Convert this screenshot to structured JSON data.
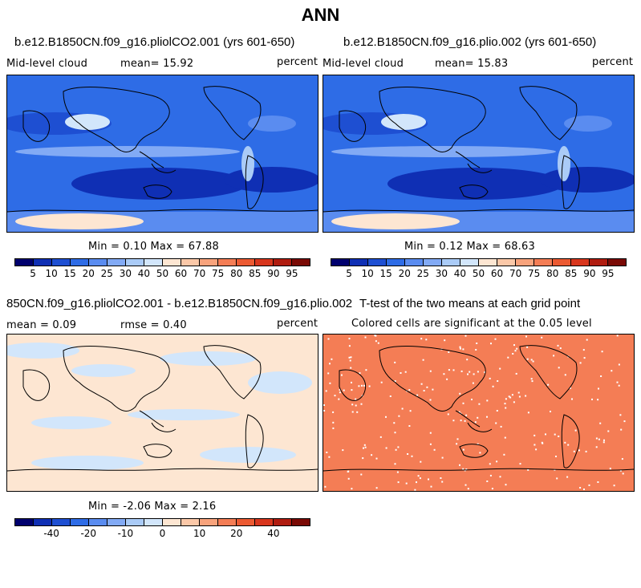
{
  "title": "ANN",
  "panels": [
    {
      "title": "b.e12.B1850CN.f09_g16.pliolCO2.001 (yrs 601-650)",
      "left_label": "Mid-level cloud",
      "mean_label": "mean=  15.92",
      "right_label": "percent",
      "minmax": "Min =   0.10 Max =  67.88"
    },
    {
      "title": "b.e12.B1850CN.f09_g16.plio.002 (yrs 601-650)",
      "left_label": "Mid-level cloud",
      "mean_label": "mean=  15.83",
      "right_label": "percent",
      "minmax": "Min =   0.12 Max =  68.63"
    },
    {
      "title": "850CN.f09_g16.pliolCO2.001 - b.e12.B1850CN.f09_g16.plio.002",
      "left_label": "mean =   0.09",
      "mean_label": "rmse =   0.40",
      "right_label": "percent",
      "minmax": "Min = -2.06 Max =   2.16"
    },
    {
      "title": "T-test of the two means at each grid point",
      "left_label": "Colored cells are significant at the 0.05 level"
    }
  ],
  "colorbar_abs": {
    "colors": [
      "#00006e",
      "#0f2fb4",
      "#1e4fd2",
      "#2e6ce6",
      "#5a8cf0",
      "#82aaf5",
      "#aacbf7",
      "#d2e6fb",
      "#fde6d2",
      "#fbc8a8",
      "#f8a37c",
      "#f47d55",
      "#ec5a32",
      "#d8361d",
      "#b01c10",
      "#7a0a05"
    ],
    "ticks": [
      "5",
      "10",
      "15",
      "20",
      "25",
      "30",
      "40",
      "50",
      "60",
      "70",
      "75",
      "80",
      "85",
      "90",
      "95"
    ]
  },
  "colorbar_diff": {
    "colors": [
      "#00006e",
      "#0f2fb4",
      "#1e4fd2",
      "#2e6ce6",
      "#5a8cf0",
      "#82aaf5",
      "#aacbf7",
      "#d2e6fb",
      "#fde6d2",
      "#fbc8a8",
      "#f8a37c",
      "#f47d55",
      "#ec5a32",
      "#d8361d",
      "#b01c10",
      "#7a0a05"
    ],
    "ticks": [
      "-40",
      "-20",
      "-10",
      "0",
      "10",
      "20",
      "40"
    ]
  }
}
